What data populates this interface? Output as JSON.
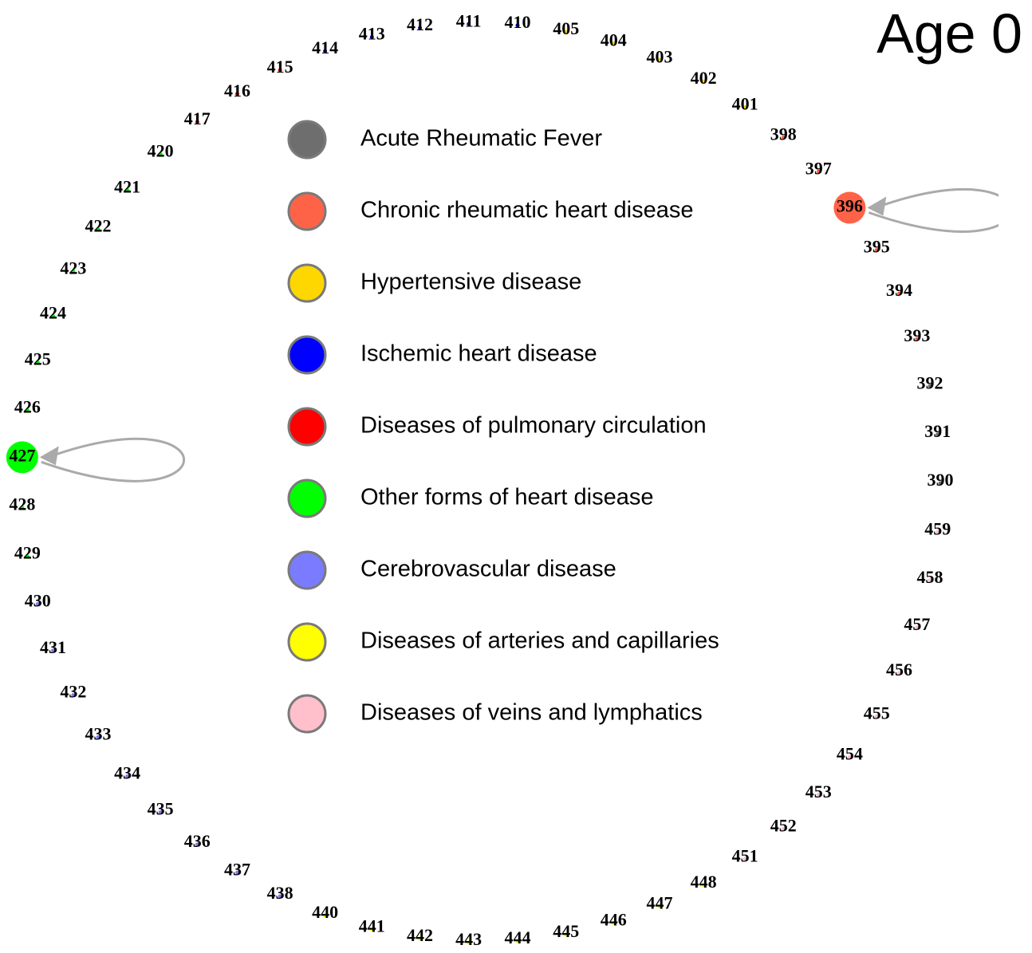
{
  "title": "Age 0",
  "groups": [
    {
      "label": "Acute Rheumatic Fever",
      "color": "#6e6e6e",
      "nodes": [
        {
          "label": "390"
        },
        {
          "label": "391"
        },
        {
          "label": "392"
        }
      ]
    },
    {
      "label": "Chronic rheumatic heart disease",
      "color": "#ff6347",
      "nodes": [
        {
          "label": "393"
        },
        {
          "label": "394"
        },
        {
          "label": "395"
        },
        {
          "label": "396",
          "self_loop": true
        },
        {
          "label": "397"
        },
        {
          "label": "398"
        }
      ]
    },
    {
      "label": "Hypertensive disease",
      "color": "#ffd700",
      "nodes": [
        {
          "label": "401"
        },
        {
          "label": "402"
        },
        {
          "label": "403"
        },
        {
          "label": "404"
        },
        {
          "label": "405"
        }
      ]
    },
    {
      "label": "Ischemic heart disease",
      "color": "#0000ff",
      "nodes": [
        {
          "label": "410"
        },
        {
          "label": "411"
        },
        {
          "label": "412"
        },
        {
          "label": "413"
        },
        {
          "label": "414"
        }
      ]
    },
    {
      "label": "Diseases of pulmonary circulation",
      "color": "#ff0000",
      "nodes": [
        {
          "label": "415"
        },
        {
          "label": "416"
        },
        {
          "label": "417"
        }
      ]
    },
    {
      "label": "Other forms of heart disease",
      "color": "#00ff00",
      "nodes": [
        {
          "label": "420"
        },
        {
          "label": "421"
        },
        {
          "label": "422"
        },
        {
          "label": "423"
        },
        {
          "label": "424"
        },
        {
          "label": "425"
        },
        {
          "label": "426"
        },
        {
          "label": "427",
          "self_loop": true
        },
        {
          "label": "428"
        },
        {
          "label": "429"
        }
      ]
    },
    {
      "label": "Cerebrovascular disease",
      "color": "#7b7bff",
      "nodes": [
        {
          "label": "430"
        },
        {
          "label": "431"
        },
        {
          "label": "432"
        },
        {
          "label": "433"
        },
        {
          "label": "434"
        },
        {
          "label": "435"
        },
        {
          "label": "436"
        },
        {
          "label": "437"
        },
        {
          "label": "438"
        }
      ]
    },
    {
      "label": "Diseases of arteries and capillaries",
      "color": "#ffff00",
      "nodes": [
        {
          "label": "440"
        },
        {
          "label": "441"
        },
        {
          "label": "442"
        },
        {
          "label": "443"
        },
        {
          "label": "444"
        },
        {
          "label": "445"
        },
        {
          "label": "446"
        },
        {
          "label": "447"
        },
        {
          "label": "448"
        }
      ]
    },
    {
      "label": "Diseases of veins and lymphatics",
      "color": "#ffc0cb",
      "nodes": [
        {
          "label": "451"
        },
        {
          "label": "452"
        },
        {
          "label": "453"
        },
        {
          "label": "454"
        },
        {
          "label": "455"
        },
        {
          "label": "456"
        },
        {
          "label": "457"
        },
        {
          "label": "458"
        },
        {
          "label": "459"
        }
      ]
    }
  ]
}
